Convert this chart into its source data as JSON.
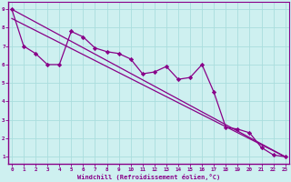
{
  "title": "",
  "xlabel": "Windchill (Refroidissement éolien,°C)",
  "bg_color": "#cef0f0",
  "line_color": "#880088",
  "grid_color": "#aadddd",
  "spine_color": "#880088",
  "x_ticks": [
    0,
    1,
    2,
    3,
    4,
    5,
    6,
    7,
    8,
    9,
    10,
    11,
    12,
    13,
    14,
    15,
    16,
    17,
    18,
    19,
    20,
    21,
    22,
    23
  ],
  "y_ticks": [
    1,
    2,
    3,
    4,
    5,
    6,
    7,
    8,
    9
  ],
  "xlim": [
    -0.3,
    23.3
  ],
  "ylim": [
    0.6,
    9.4
  ],
  "data_x": [
    0,
    1,
    2,
    3,
    4,
    5,
    6,
    7,
    8,
    9,
    10,
    11,
    12,
    13,
    14,
    15,
    16,
    17,
    18,
    19,
    20,
    21,
    22,
    23
  ],
  "data_y": [
    9.0,
    7.0,
    6.6,
    6.0,
    6.0,
    7.8,
    7.5,
    6.9,
    6.7,
    6.6,
    6.3,
    5.5,
    5.6,
    5.9,
    5.2,
    5.3,
    6.0,
    4.5,
    2.6,
    2.5,
    2.3,
    1.5,
    1.1,
    1.0
  ],
  "line1_x": [
    0,
    23
  ],
  "line1_y": [
    9.0,
    1.0
  ],
  "line2_x": [
    0,
    23
  ],
  "line2_y": [
    8.5,
    1.0
  ],
  "tick_fontsize": 4.2,
  "xlabel_fontsize": 5.0
}
